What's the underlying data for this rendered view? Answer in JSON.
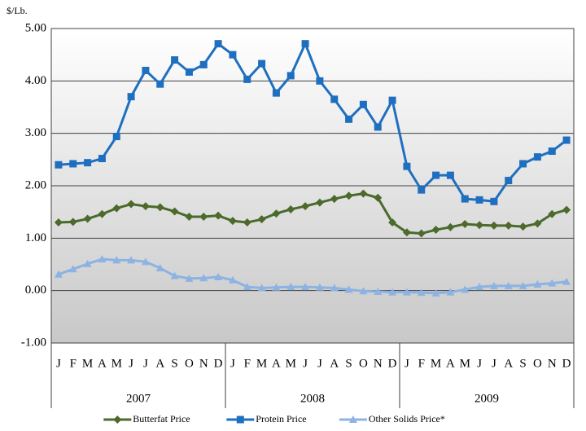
{
  "chart_data": {
    "type": "line",
    "y_label": "$/Lb.",
    "categories": [
      "J",
      "F",
      "M",
      "A",
      "M",
      "J",
      "J",
      "A",
      "S",
      "O",
      "N",
      "D",
      "J",
      "F",
      "M",
      "A",
      "M",
      "J",
      "J",
      "A",
      "S",
      "O",
      "N",
      "D",
      "J",
      "F",
      "M",
      "A",
      "M",
      "J",
      "J",
      "A",
      "S",
      "O",
      "N",
      "D"
    ],
    "groups": [
      "2007",
      "2008",
      "2009"
    ],
    "series": [
      {
        "name": "Butterfat Price",
        "color": "#4b6a2b",
        "marker": "diamond",
        "values": [
          1.3,
          1.31,
          1.37,
          1.46,
          1.57,
          1.65,
          1.61,
          1.59,
          1.51,
          1.41,
          1.41,
          1.43,
          1.33,
          1.3,
          1.36,
          1.47,
          1.55,
          1.61,
          1.68,
          1.75,
          1.81,
          1.85,
          1.77,
          1.3,
          1.11,
          1.09,
          1.16,
          1.21,
          1.27,
          1.25,
          1.24,
          1.24,
          1.22,
          1.28,
          1.46,
          1.54
        ]
      },
      {
        "name": "Protein Price",
        "color": "#1f6fc0",
        "marker": "square",
        "values": [
          2.4,
          2.42,
          2.44,
          2.52,
          2.94,
          3.7,
          4.2,
          3.94,
          4.4,
          4.17,
          4.31,
          4.71,
          4.5,
          4.03,
          4.33,
          3.77,
          4.1,
          4.71,
          4.0,
          3.65,
          3.27,
          3.55,
          3.12,
          3.63,
          2.37,
          1.92,
          2.2,
          2.2,
          1.75,
          1.73,
          1.7,
          2.1,
          2.42,
          2.55,
          2.66,
          2.87
        ]
      },
      {
        "name": "Other Solids Price*",
        "color": "#8db3e2",
        "marker": "triangle",
        "values": [
          0.31,
          0.41,
          0.51,
          0.6,
          0.58,
          0.58,
          0.55,
          0.43,
          0.28,
          0.23,
          0.24,
          0.26,
          0.2,
          0.07,
          0.05,
          0.06,
          0.07,
          0.07,
          0.06,
          0.05,
          0.02,
          -0.01,
          -0.02,
          -0.03,
          -0.03,
          -0.04,
          -0.05,
          -0.03,
          0.02,
          0.07,
          0.09,
          0.09,
          0.09,
          0.12,
          0.14,
          0.17
        ]
      }
    ],
    "ylim": [
      -1,
      5
    ],
    "yticks": [
      {
        "value": -1,
        "label": "-1.00"
      },
      {
        "value": 0,
        "label": "0.00"
      },
      {
        "value": 1,
        "label": "1.00"
      },
      {
        "value": 2,
        "label": "2.00"
      },
      {
        "value": 3,
        "label": "3.00"
      },
      {
        "value": 4,
        "label": "4.00"
      },
      {
        "value": 5,
        "label": "5.00"
      }
    ],
    "grid": true,
    "legend": "bottom"
  }
}
